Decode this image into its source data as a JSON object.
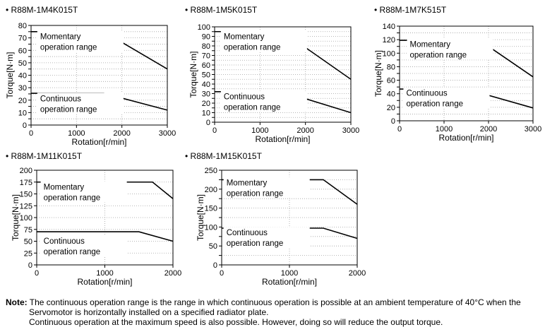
{
  "chart_data": [
    {
      "type": "line",
      "title": "R88M-1M4K015T",
      "xlabel": "Rotation[r/min]",
      "ylabel": "Torque[N·m]",
      "xlim": [
        0,
        3000
      ],
      "ylim": [
        0,
        80
      ],
      "xticks": [
        0,
        1000,
        2000,
        3000
      ],
      "yticks": [
        0,
        5,
        10,
        15,
        20,
        25,
        30,
        35,
        40,
        45,
        50,
        55,
        60,
        65,
        70,
        75,
        80
      ],
      "ytick_labels": [
        "0",
        "",
        "10",
        "",
        "20",
        "",
        "30",
        "",
        "40",
        "",
        "50",
        "",
        "60",
        "",
        "70",
        "",
        "80"
      ],
      "grid": true,
      "series": [
        {
          "name": "Momentary operation range",
          "x": [
            0,
            1600,
            3000
          ],
          "y": [
            75,
            75,
            45
          ],
          "label_lines": [
            "Momentary",
            "operation range"
          ],
          "label_at": [
            200,
            69
          ]
        },
        {
          "name": "Continuous operation range",
          "x": [
            0,
            1600,
            3000
          ],
          "y": [
            25.5,
            25.5,
            12
          ],
          "label_lines": [
            "Continuous",
            "operation range"
          ],
          "label_at": [
            200,
            19
          ]
        }
      ]
    },
    {
      "type": "line",
      "title": "R88M-1M5K015T",
      "xlabel": "Rotation[r/min]",
      "ylabel": "Torque[N·m]",
      "xlim": [
        0,
        3000
      ],
      "ylim": [
        0,
        100
      ],
      "xticks": [
        0,
        1000,
        2000,
        3000
      ],
      "yticks": [
        0,
        5,
        10,
        15,
        20,
        25,
        30,
        35,
        40,
        45,
        50,
        55,
        60,
        65,
        70,
        75,
        80,
        85,
        90,
        95,
        100
      ],
      "ytick_labels": [
        "0",
        "",
        "10",
        "",
        "20",
        "",
        "30",
        "",
        "40",
        "",
        "50",
        "",
        "60",
        "",
        "70",
        "",
        "80",
        "",
        "90",
        "",
        "100"
      ],
      "grid": true,
      "series": [
        {
          "name": "Momentary operation range",
          "x": [
            0,
            1500,
            3000
          ],
          "y": [
            95,
            95,
            45
          ],
          "label_lines": [
            "Momentary",
            "operation range"
          ],
          "label_at": [
            200,
            87
          ]
        },
        {
          "name": "Continuous operation range",
          "x": [
            0,
            1500,
            3000
          ],
          "y": [
            32,
            32,
            10
          ],
          "label_lines": [
            "Continuous",
            "operation range"
          ],
          "label_at": [
            200,
            24
          ]
        }
      ]
    },
    {
      "type": "line",
      "title": "R88M-1M7K515T",
      "xlabel": "Rotation[r/min]",
      "ylabel": "Torque[N·m]",
      "xlim": [
        0,
        3000
      ],
      "ylim": [
        0,
        140
      ],
      "xticks": [
        0,
        1000,
        2000,
        3000
      ],
      "yticks": [
        0,
        10,
        20,
        30,
        40,
        50,
        60,
        70,
        80,
        90,
        100,
        110,
        120,
        130,
        140
      ],
      "ytick_labels": [
        "0",
        "",
        "20",
        "",
        "40",
        "",
        "60",
        "",
        "80",
        "",
        "100",
        "",
        "120",
        "",
        "140"
      ],
      "grid": true,
      "series": [
        {
          "name": "Momentary operation range",
          "x": [
            0,
            1800,
            3000
          ],
          "y": [
            119,
            119,
            65
          ],
          "label_lines": [
            "Momentary",
            "operation range"
          ],
          "label_at": [
            230,
            109
          ]
        },
        {
          "name": "Continuous operation range",
          "x": [
            0,
            1500,
            3000
          ],
          "y": [
            47,
            47,
            19
          ],
          "label_lines": [
            "Continuous",
            "operation range"
          ],
          "label_at": [
            150,
            37
          ]
        }
      ]
    },
    {
      "type": "line",
      "title": "R88M-1M11K015T",
      "xlabel": "Rotation[r/min]",
      "ylabel": "Torque[N·m]",
      "xlim": [
        0,
        2000
      ],
      "ylim": [
        0,
        200
      ],
      "xticks": [
        0,
        1000,
        2000
      ],
      "yticks": [
        0,
        25,
        50,
        75,
        100,
        125,
        150,
        175,
        200
      ],
      "ytick_labels": [
        "0",
        "25",
        "50",
        "75",
        "100",
        "125",
        "150",
        "175",
        "200"
      ],
      "grid": true,
      "series": [
        {
          "name": "Momentary operation range",
          "x": [
            0,
            1700,
            2000
          ],
          "y": [
            175,
            175,
            140
          ],
          "label_lines": [
            "Momentary",
            "operation range"
          ],
          "label_at": [
            100,
            159
          ]
        },
        {
          "name": "Continuous operation range",
          "x": [
            0,
            1500,
            2000
          ],
          "y": [
            70,
            70,
            50
          ],
          "label_lines": [
            "Continuous",
            "operation range"
          ],
          "label_at": [
            100,
            45
          ]
        }
      ]
    },
    {
      "type": "line",
      "title": "R88M-1M15K015T",
      "xlabel": "Rotation[r/min]",
      "ylabel": "Torque[N·m]",
      "xlim": [
        0,
        2000
      ],
      "ylim": [
        0,
        250
      ],
      "xticks": [
        0,
        1000,
        2000
      ],
      "yticks": [
        0,
        25,
        50,
        75,
        100,
        125,
        150,
        175,
        200,
        225,
        250
      ],
      "ytick_labels": [
        "0",
        "",
        "50",
        "",
        "100",
        "",
        "150",
        "",
        "200",
        "",
        "250"
      ],
      "grid": true,
      "series": [
        {
          "name": "Momentary operation range",
          "x": [
            0,
            1500,
            2000
          ],
          "y": [
            225,
            225,
            160
          ],
          "label_lines": [
            "Momentary",
            "operation range"
          ],
          "label_at": [
            70,
            210
          ]
        },
        {
          "name": "Continuous operation range",
          "x": [
            0,
            1500,
            2000
          ],
          "y": [
            97,
            97,
            70
          ],
          "label_lines": [
            "Continuous",
            "operation range"
          ],
          "label_at": [
            70,
            78
          ]
        }
      ]
    }
  ],
  "bullet": "•",
  "note": {
    "label": "Note:",
    "line1": "The continuous operation range is the range in which continuous operation is possible at an ambient temperature of 40°C when the",
    "line2": "Servomotor is horizontally installed on a specified radiator plate.",
    "line3": "Continuous operation at the maximum speed is also possible. However, doing so will reduce the output torque."
  }
}
